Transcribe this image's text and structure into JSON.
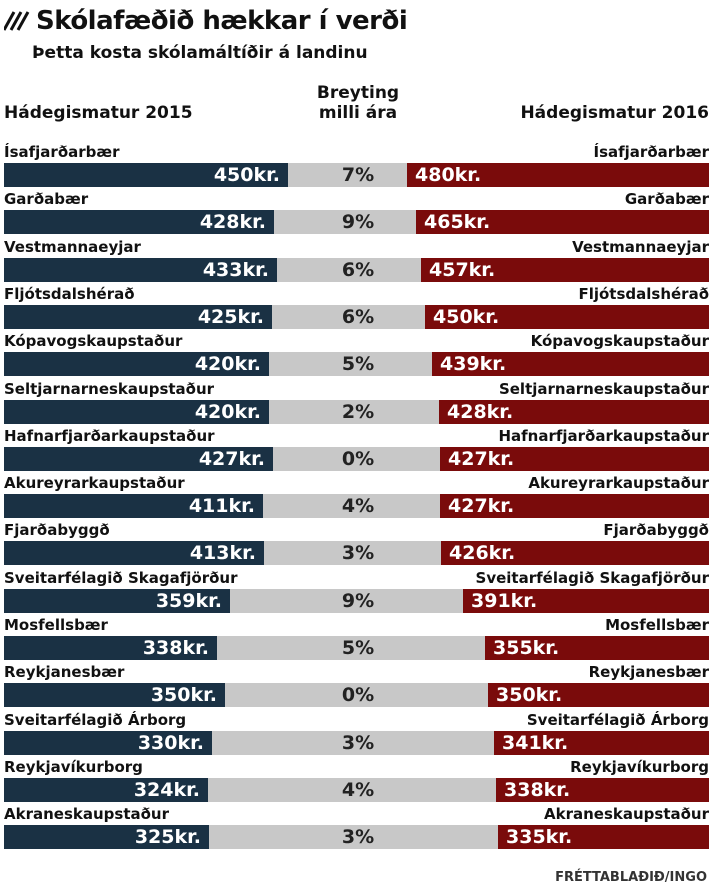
{
  "header": {
    "title": "Skólafæðið hækkar í verði",
    "subtitle": "Þetta kosta skólamáltíðir á landinu",
    "col_left": "Hádegismatur 2015",
    "col_mid_line1": "Breyting",
    "col_mid_line2": "milli ára",
    "col_right": "Hádegismatur 2016"
  },
  "credit": "FRÉTTABLAÐIÐ/INGO",
  "colors": {
    "left_bar": "#1a3144",
    "right_bar": "#7a0b0b",
    "track": "#c8c8c8"
  },
  "chart_data": {
    "type": "bar",
    "title": "Skólafæðið hækkar í verði",
    "subtitle": "Þetta kosta skólamáltíðir á landinu",
    "unit_suffix": "kr.",
    "series": [
      {
        "name": "Hádegismatur 2015",
        "values": [
          450,
          428,
          433,
          425,
          420,
          420,
          427,
          411,
          413,
          359,
          338,
          350,
          330,
          324,
          325
        ]
      },
      {
        "name": "Hádegismatur 2016",
        "values": [
          480,
          465,
          457,
          450,
          439,
          428,
          427,
          427,
          426,
          391,
          355,
          350,
          341,
          338,
          335
        ]
      }
    ],
    "categories": [
      "Ísafjarðarbær",
      "Garðabær",
      "Vestmannaeyjar",
      "Fljótsdalshérað",
      "Kópavogskaupstaður",
      "Seltjarnarneskaupstaður",
      "Hafnarfjarðarkaupstaður",
      "Akureyrarkaupstaður",
      "Fjarðabyggð",
      "Sveitarfélagið Skagafjörður",
      "Mosfellsbær",
      "Reykjanesbær",
      "Sveitarfélagið Árborg",
      "Reykjavíkurborg",
      "Akraneskaupstaður"
    ],
    "change": [
      "7%",
      "9%",
      "6%",
      "6%",
      "5%",
      "2%",
      "0%",
      "4%",
      "3%",
      "9%",
      "5%",
      "0%",
      "3%",
      "4%",
      "3%"
    ],
    "change_label": "Breyting milli ára"
  }
}
